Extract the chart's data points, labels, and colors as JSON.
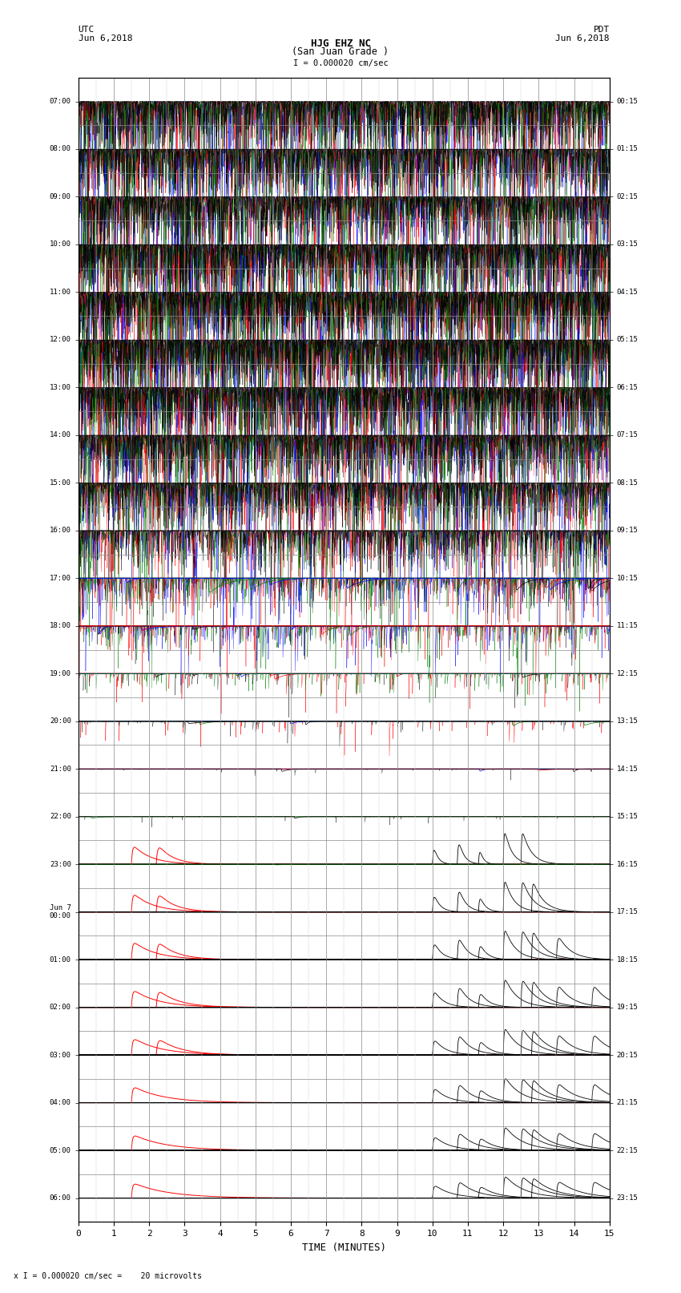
{
  "title_line1": "HJG EHZ NC",
  "title_line2": "(San Juan Grade )",
  "scale_label": "I = 0.000020 cm/sec",
  "utc_label": "UTC",
  "pdt_label": "PDT",
  "date_left": "Jun 6,2018",
  "date_right": "Jun 6,2018",
  "bottom_label": "x I = 0.000020 cm/sec =    20 microvolts",
  "xlabel": "TIME (MINUTES)",
  "xlim": [
    0,
    15
  ],
  "xticks": [
    0,
    1,
    2,
    3,
    4,
    5,
    6,
    7,
    8,
    9,
    10,
    11,
    12,
    13,
    14,
    15
  ],
  "utc_times": [
    "07:00",
    "08:00",
    "09:00",
    "10:00",
    "11:00",
    "12:00",
    "13:00",
    "14:00",
    "15:00",
    "16:00",
    "17:00",
    "18:00",
    "19:00",
    "20:00",
    "21:00",
    "22:00",
    "23:00",
    "Jun 7\n00:00",
    "01:00",
    "02:00",
    "03:00",
    "04:00",
    "05:00",
    "06:00"
  ],
  "pdt_times": [
    "00:15",
    "01:15",
    "02:15",
    "03:15",
    "04:15",
    "05:15",
    "06:15",
    "07:15",
    "08:15",
    "09:15",
    "10:15",
    "11:15",
    "12:15",
    "13:15",
    "14:15",
    "15:15",
    "16:15",
    "17:15",
    "18:15",
    "19:15",
    "20:15",
    "21:15",
    "22:15",
    "23:15"
  ],
  "n_rows": 24,
  "bg_color": "#ffffff",
  "grid_color": "#888888",
  "signal_colors": [
    "#0000ff",
    "#ff0000",
    "#008000",
    "#000000"
  ],
  "figsize": [
    8.5,
    16.13
  ],
  "dpi": 100
}
